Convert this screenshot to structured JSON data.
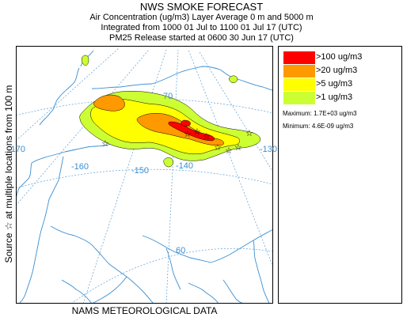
{
  "header": {
    "title": "NWS SMOKE FORECAST",
    "line2": "Air Concentration (ug/m3) Layer Average    0 m and  5000 m",
    "line3": "Integrated from 1000 01 Jul to 1100 01 Jul 17 (UTC)",
    "line4": "PM25 Release started at 0600 30 Jun 17 (UTC)"
  },
  "side_label": "Source ☆ at multiple locations   from  100 m",
  "footer": "NAMS METEOROLOGICAL DATA",
  "map": {
    "longitude_labels": [
      "-170",
      "-160",
      "-150",
      "-140",
      "-130"
    ],
    "latitude_labels": [
      "70",
      "60"
    ],
    "colors": {
      "coastline": "#3b8fd1",
      "graticule": "#5a9fd6",
      "level_100": "#ff0000",
      "level_20": "#ff9900",
      "level_5": "#ffff00",
      "level_1": "#ccff33"
    }
  },
  "legend": {
    "levels": [
      {
        "label": ">100 ug/m3",
        "color": "#ff0000"
      },
      {
        "label": ">20 ug/m3",
        "color": "#ff9900"
      },
      {
        "label": ">5 ug/m3",
        "color": "#ffff00"
      },
      {
        "label": ">1 ug/m3",
        "color": "#ccff33"
      }
    ],
    "maximum": "Maximum: 1.7E+03 ug/m3",
    "minimum": "Minimum: 4.6E-09 ug/m3"
  }
}
